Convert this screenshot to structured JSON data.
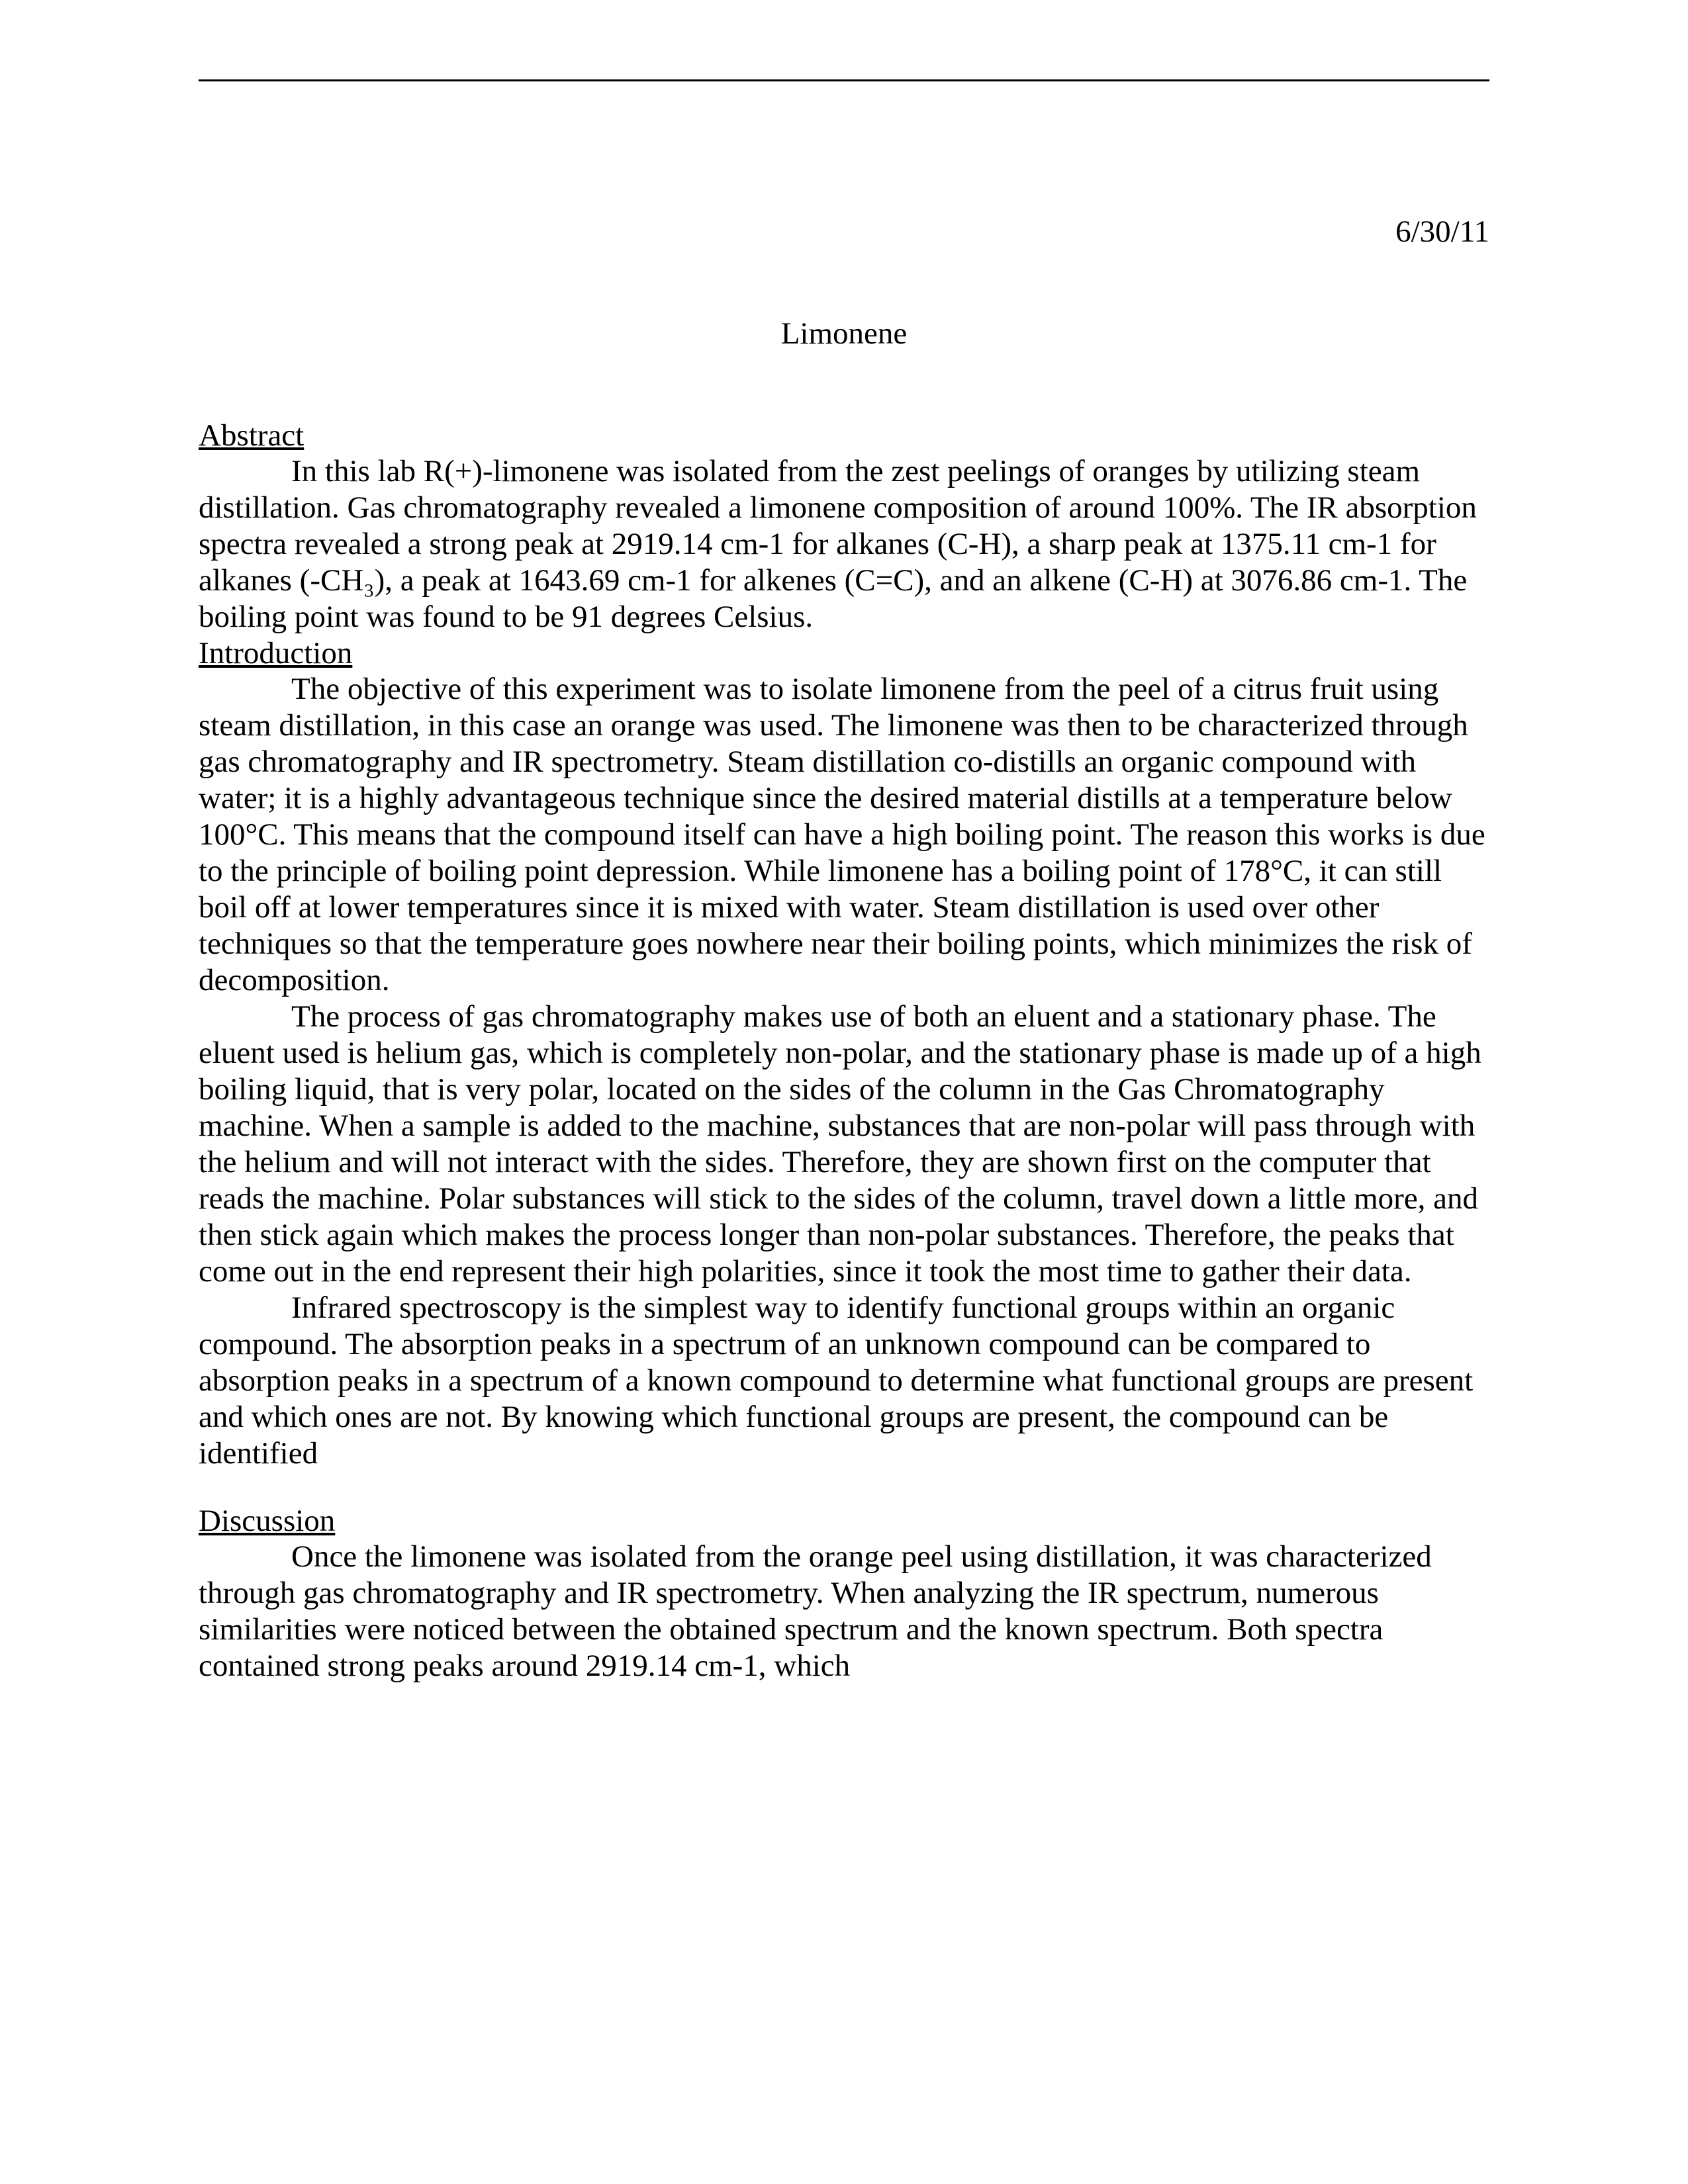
{
  "date": "6/30/11",
  "title": "Limonene",
  "sections": {
    "abstract": {
      "heading": "Abstract",
      "p1": "In this lab R(+)-limonene was isolated from the zest peelings of oranges by utilizing steam distillation. Gas chromatography revealed a limonene composition of around 100%. The IR absorption spectra revealed a strong peak at 2919.14 cm-1 for alkanes (C-H), a sharp peak at 1375.11 cm-1 for alkanes (-CH₃), a peak at 1643.69 cm-1 for alkenes (C=C), and an alkene (C-H) at 3076.86 cm-1. The boiling point was found to be 91 degrees Celsius."
    },
    "introduction": {
      "heading": "Introduction",
      "p1": "The objective of this experiment was to isolate limonene from the peel of a citrus fruit using steam distillation, in this case an orange was used. The limonene was then to be characterized through gas chromatography and IR spectrometry. Steam distillation co-distills an organic compound with water; it is a highly advantageous technique since the desired material distills at a temperature below 100°C. This means that the compound itself can have a high boiling point. The reason this works is due to the principle of boiling point depression. While limonene has a boiling point of 178°C, it can still boil off at lower temperatures since it is mixed with water. Steam distillation is used over other techniques so that the temperature goes nowhere near their boiling points, which minimizes the risk of decomposition.",
      "p2": "The process of gas chromatography makes use of both an eluent and a stationary phase. The eluent used is helium gas, which is completely non-polar, and the stationary phase is made up of a high boiling liquid, that is very polar, located on the sides of the column in the Gas Chromatography machine. When a sample is added to the machine, substances that are non-polar will pass through with the helium and will not interact with the sides. Therefore, they are shown first on the computer that reads the machine. Polar substances will stick to the sides of the column, travel down a little more, and then stick again which makes the process longer than non-polar substances. Therefore, the peaks that come out in the end represent their high polarities, since it took the most time to gather their data.",
      "p3": "Infrared spectroscopy is the simplest way to identify functional groups within an organic compound. The absorption peaks in a spectrum of an unknown compound can be compared to absorption peaks in a spectrum of a known compound to determine what functional groups are present and which ones are not. By knowing which functional groups are present, the compound can be identified"
    },
    "discussion": {
      "heading": "Discussion",
      "p1": "Once the limonene was isolated from the orange peel using distillation, it was characterized through gas chromatography and IR spectrometry. When analyzing the IR spectrum, numerous similarities were noticed between the obtained spectrum and the known spectrum. Both spectra contained strong peaks around 2919.14 cm-1, which"
    }
  }
}
